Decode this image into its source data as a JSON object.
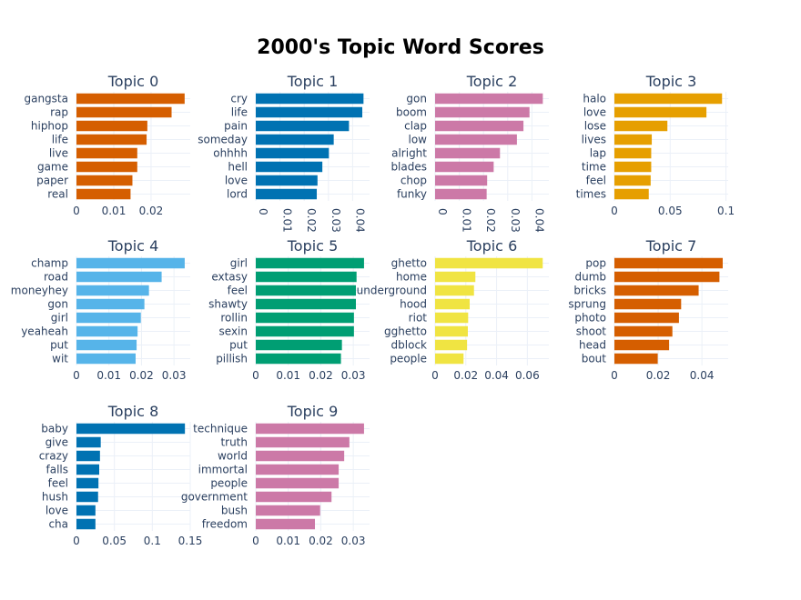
{
  "chart_data": {
    "type": "bar",
    "orientation": "horizontal",
    "title": "2000's Topic Word Scores",
    "grid": true,
    "subplots": [
      {
        "title": "Topic 0",
        "color": "#D55E00",
        "categories": [
          "gangsta",
          "rap",
          "hiphop",
          "life",
          "live",
          "game",
          "paper",
          "real"
        ],
        "values": [
          0.029,
          0.0255,
          0.019,
          0.0188,
          0.0163,
          0.0163,
          0.015,
          0.0145
        ],
        "xlim": [
          0,
          0.0305
        ],
        "ticks": [
          0,
          0.01,
          0.02
        ],
        "tick_labels": [
          "0",
          "0.01",
          "0.02"
        ],
        "tick_rotated": false
      },
      {
        "title": "Topic 1",
        "color": "#0072B2",
        "categories": [
          "cry",
          "life",
          "pain",
          "someday",
          "ohhhh",
          "hell",
          "love",
          "lord"
        ],
        "values": [
          0.0445,
          0.044,
          0.0385,
          0.0322,
          0.0302,
          0.0275,
          0.0255,
          0.0252
        ],
        "xlim": [
          0,
          0.047
        ],
        "ticks": [
          0,
          0.01,
          0.02,
          0.03,
          0.04
        ],
        "tick_labels": [
          "0",
          "0.01",
          "0.02",
          "0.03",
          "0.04"
        ],
        "tick_rotated": true
      },
      {
        "title": "Topic 2",
        "color": "#CC79A7",
        "categories": [
          "gon",
          "boom",
          "clap",
          "low",
          "alright",
          "blades",
          "chop",
          "funky"
        ],
        "values": [
          0.0445,
          0.039,
          0.0365,
          0.0338,
          0.0268,
          0.0242,
          0.0215,
          0.0213
        ],
        "xlim": [
          0,
          0.047
        ],
        "ticks": [
          0,
          0.01,
          0.02,
          0.03,
          0.04
        ],
        "tick_labels": [
          "0",
          "0.01",
          "0.02",
          "0.03",
          "0.04"
        ],
        "tick_rotated": true
      },
      {
        "title": "Topic 3",
        "color": "#E69F00",
        "categories": [
          "halo",
          "love",
          "lose",
          "lives",
          "lap",
          "time",
          "feel",
          "times"
        ],
        "values": [
          0.0965,
          0.0825,
          0.0475,
          0.0335,
          0.033,
          0.033,
          0.0325,
          0.0308
        ],
        "xlim": [
          0,
          0.102
        ],
        "ticks": [
          0,
          0.05,
          0.1
        ],
        "tick_labels": [
          "0",
          "0.05",
          "0.1"
        ],
        "tick_rotated": false
      },
      {
        "title": "Topic 4",
        "color": "#56B4E9",
        "categories": [
          "champ",
          "road",
          "moneyhey",
          "gon",
          "girl",
          "yeaheah",
          "put",
          "wit"
        ],
        "values": [
          0.0333,
          0.0262,
          0.0223,
          0.0209,
          0.0198,
          0.0188,
          0.0185,
          0.0182
        ],
        "xlim": [
          0,
          0.035
        ],
        "ticks": [
          0,
          0.01,
          0.02,
          0.03
        ],
        "tick_labels": [
          "0",
          "0.01",
          "0.02",
          "0.03"
        ],
        "tick_rotated": false
      },
      {
        "title": "Topic 5",
        "color": "#009E73",
        "categories": [
          "girl",
          "extasy",
          "feel",
          "shawty",
          "rollin",
          "sexin",
          "put",
          "pillish"
        ],
        "values": [
          0.0333,
          0.031,
          0.0308,
          0.0308,
          0.0302,
          0.0302,
          0.0265,
          0.0262
        ],
        "xlim": [
          0,
          0.035
        ],
        "ticks": [
          0,
          0.01,
          0.02,
          0.03
        ],
        "tick_labels": [
          "0",
          "0.01",
          "0.02",
          "0.03"
        ],
        "tick_rotated": false
      },
      {
        "title": "Topic 6",
        "color": "#F0E442",
        "categories": [
          "ghetto",
          "home",
          "underground",
          "hood",
          "riot",
          "gghetto",
          "dblock",
          "people"
        ],
        "values": [
          0.07,
          0.0262,
          0.0253,
          0.0225,
          0.0215,
          0.0213,
          0.0208,
          0.0185
        ],
        "xlim": [
          0,
          0.074
        ],
        "ticks": [
          0,
          0.02,
          0.04,
          0.06
        ],
        "tick_labels": [
          "0",
          "0.02",
          "0.04",
          "0.06"
        ],
        "tick_rotated": false
      },
      {
        "title": "Topic 7",
        "color": "#D55E00",
        "categories": [
          "pop",
          "dumb",
          "bricks",
          "sprung",
          "photo",
          "shoot",
          "head",
          "bout"
        ],
        "values": [
          0.0495,
          0.048,
          0.0385,
          0.0305,
          0.0295,
          0.0265,
          0.025,
          0.0198
        ],
        "xlim": [
          0,
          0.052
        ],
        "ticks": [
          0,
          0.02,
          0.04
        ],
        "tick_labels": [
          "0",
          "0.02",
          "0.04"
        ],
        "tick_rotated": false
      },
      {
        "title": "Topic 8",
        "color": "#0072B2",
        "categories": [
          "baby",
          "give",
          "crazy",
          "falls",
          "feel",
          "hush",
          "love",
          "cha"
        ],
        "values": [
          0.143,
          0.032,
          0.031,
          0.03,
          0.029,
          0.0285,
          0.025,
          0.025
        ],
        "xlim": [
          0,
          0.15
        ],
        "ticks": [
          0,
          0.05,
          0.1,
          0.15
        ],
        "tick_labels": [
          "0",
          "0.05",
          "0.1",
          "0.15"
        ],
        "tick_rotated": false
      },
      {
        "title": "Topic 9",
        "color": "#CC79A7",
        "categories": [
          "technique",
          "truth",
          "world",
          "immortal",
          "people",
          "government",
          "bush",
          "freedom"
        ],
        "values": [
          0.0333,
          0.0288,
          0.0272,
          0.0255,
          0.0255,
          0.0233,
          0.0198,
          0.0182
        ],
        "xlim": [
          0,
          0.035
        ],
        "ticks": [
          0,
          0.01,
          0.02,
          0.03
        ],
        "tick_labels": [
          "0",
          "0.01",
          "0.02",
          "0.03"
        ],
        "tick_rotated": false
      }
    ]
  }
}
